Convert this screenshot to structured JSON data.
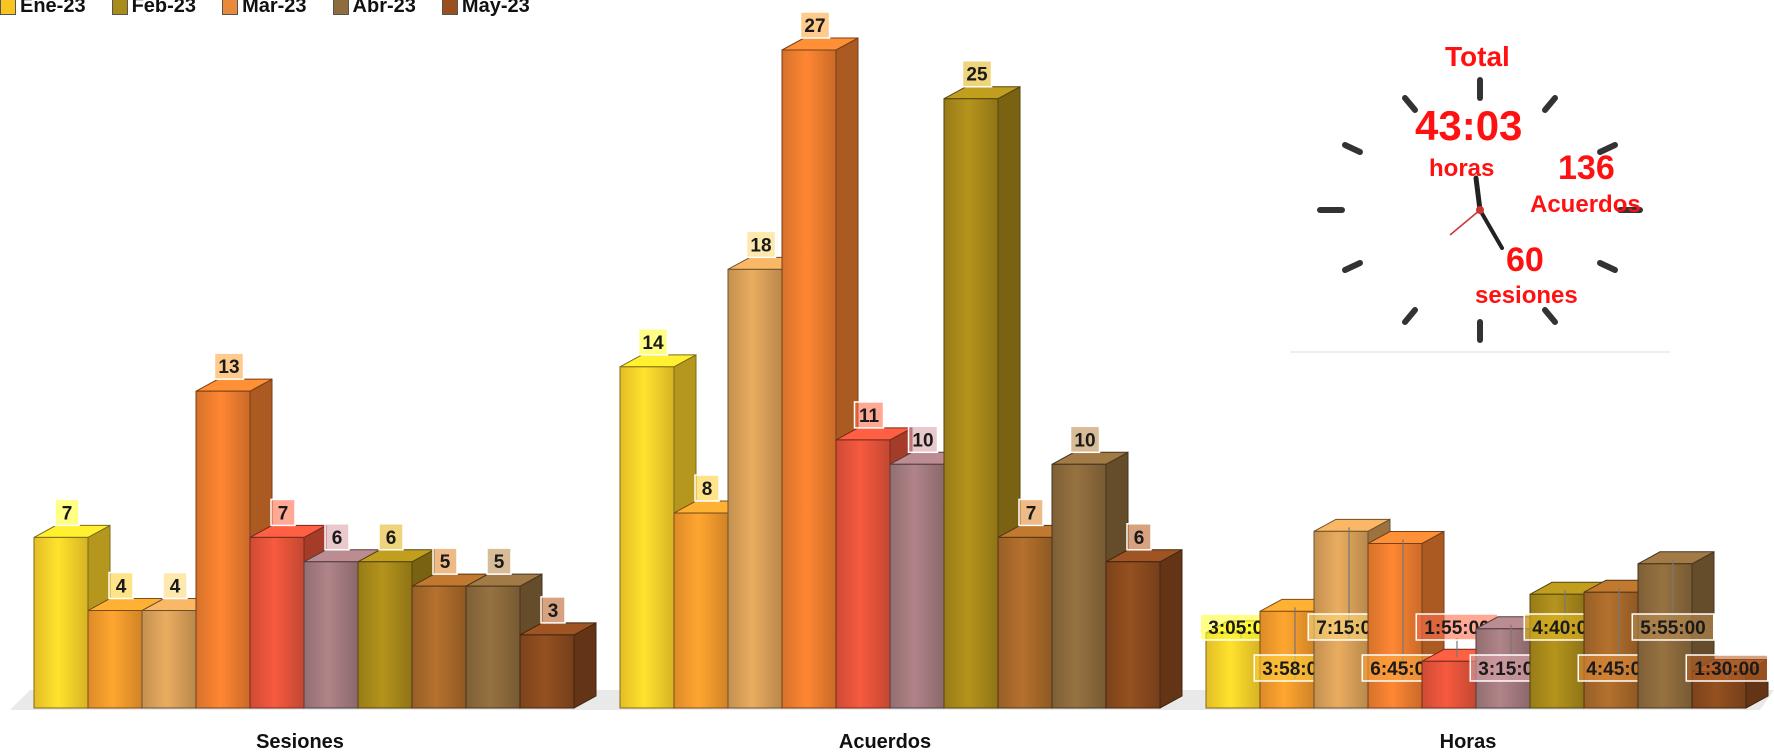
{
  "legend": [
    {
      "label": "Ene-23",
      "color": "#f7c521"
    },
    {
      "label": "Feb-23",
      "color": "#a78c1b"
    },
    {
      "label": "Mar-23",
      "color": "#e98a3a"
    },
    {
      "label": "Abr-23",
      "color": "#8f6c3e"
    },
    {
      "label": "May-23",
      "color": "#9a4f1f"
    }
  ],
  "chart_data": {
    "type": "bar",
    "title": "",
    "categories": [
      "Sesiones",
      "Acuerdos",
      "Horas"
    ],
    "bar_colors": [
      "#fcd22a",
      "#f59a2c",
      "#d9a059",
      "#ee7d2f",
      "#e5533a",
      "#a37a7e",
      "#a8891a",
      "#a8692a",
      "#8c6a3c",
      "#8a4a1e"
    ],
    "groups": [
      {
        "category": "Sesiones",
        "values": [
          7,
          4,
          4,
          13,
          7,
          6,
          6,
          5,
          5,
          3
        ],
        "labels": [
          "7",
          "4",
          "4",
          "13",
          "7",
          "6",
          "6",
          "5",
          "5",
          "3"
        ]
      },
      {
        "category": "Acuerdos",
        "values": [
          14,
          8,
          18,
          27,
          11,
          10,
          25,
          7,
          10,
          6
        ],
        "labels": [
          "14",
          "8",
          "18",
          "27",
          "11",
          "10",
          "25",
          "7",
          "10",
          "6"
        ]
      },
      {
        "category": "Horas",
        "values": [
          3.083,
          3.967,
          7.25,
          6.75,
          1.917,
          3.25,
          4.667,
          4.75,
          5.917,
          1.5
        ],
        "labels": [
          "3:05:00",
          "3:58:00",
          "7:15:00",
          "6:45:00",
          "1:55:00",
          "3:15:00",
          "4:40:00",
          "4:45:00",
          "5:55:00",
          "1:30:00"
        ]
      }
    ]
  },
  "summary": {
    "title": "Total",
    "hours_value": "43:03",
    "hours_label": "horas",
    "agreements_value": "136",
    "agreements_label": "Acuerdos",
    "sessions_value": "60",
    "sessions_label": "sesiones"
  }
}
